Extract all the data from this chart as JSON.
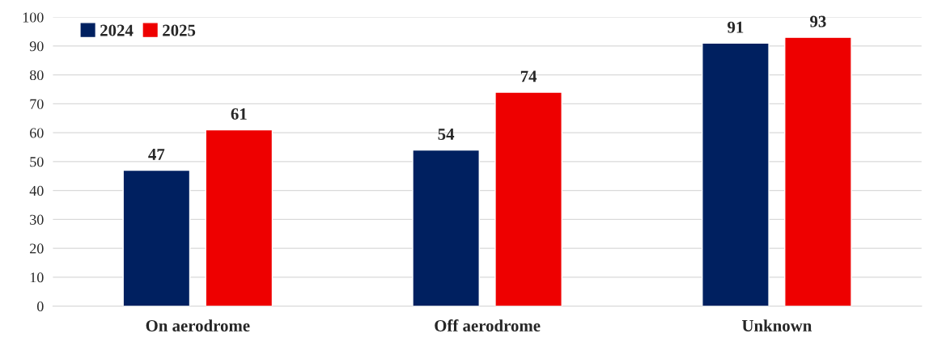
{
  "chart_data": {
    "type": "bar",
    "categories": [
      "On aerodrome",
      "Off aerodrome",
      "Unknown"
    ],
    "series": [
      {
        "name": "2024",
        "color": "#002060",
        "values": [
          47,
          54,
          91
        ]
      },
      {
        "name": "2025",
        "color": "#ee0000",
        "values": [
          61,
          74,
          93
        ]
      }
    ],
    "ylim": [
      0,
      100
    ],
    "yticks": [
      0,
      10,
      20,
      30,
      40,
      50,
      60,
      70,
      80,
      90,
      100
    ],
    "grid": "y",
    "legend": "top left",
    "data_labels": true
  }
}
